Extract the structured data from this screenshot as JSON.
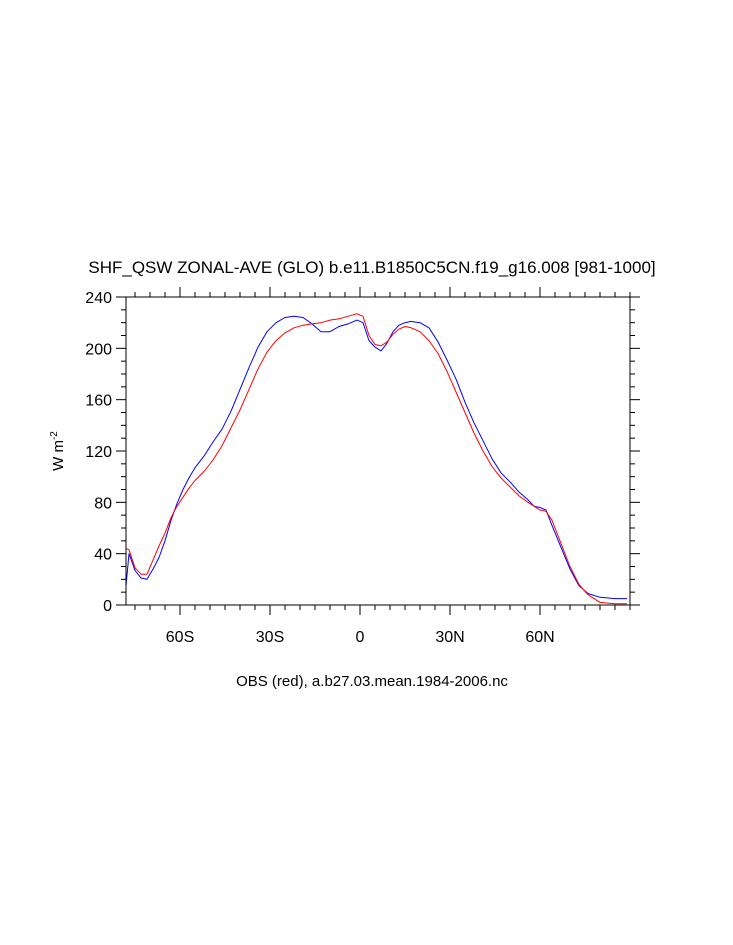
{
  "chart_data": {
    "type": "line",
    "title": "SHF_QSW ZONAL-AVE (GLO) b.e11.B1850C5CN.f19_g16.008 [981-1000]",
    "ylabel": "W m",
    "ylabel_exp": "-2",
    "footnote": "OBS (red), a.b27.03.mean.1984-2006.nc",
    "xlim": [
      -78,
      90
    ],
    "ylim": [
      0,
      240
    ],
    "x_ticks": [
      {
        "value": -60,
        "label": "60S"
      },
      {
        "value": -30,
        "label": "30S"
      },
      {
        "value": 0,
        "label": "0"
      },
      {
        "value": 30,
        "label": "30N"
      },
      {
        "value": 60,
        "label": "60N"
      }
    ],
    "y_ticks": [
      {
        "value": 0,
        "label": "0"
      },
      {
        "value": 40,
        "label": "40"
      },
      {
        "value": 80,
        "label": "80"
      },
      {
        "value": 120,
        "label": "120"
      },
      {
        "value": 160,
        "label": "160"
      },
      {
        "value": 200,
        "label": "200"
      },
      {
        "value": 240,
        "label": "240"
      }
    ],
    "series": [
      {
        "color": "#0000ff",
        "points": [
          [
            -78,
            15
          ],
          [
            -77,
            40
          ],
          [
            -75,
            27
          ],
          [
            -73,
            21
          ],
          [
            -71,
            20
          ],
          [
            -69,
            28
          ],
          [
            -67,
            37
          ],
          [
            -65,
            50
          ],
          [
            -63,
            66
          ],
          [
            -61,
            79
          ],
          [
            -59,
            90
          ],
          [
            -57,
            99
          ],
          [
            -55,
            107
          ],
          [
            -52,
            116
          ],
          [
            -49,
            127
          ],
          [
            -46,
            137
          ],
          [
            -43,
            151
          ],
          [
            -40,
            168
          ],
          [
            -37,
            185
          ],
          [
            -34,
            201
          ],
          [
            -31,
            213
          ],
          [
            -28,
            220
          ],
          [
            -25,
            224
          ],
          [
            -22,
            225
          ],
          [
            -19,
            224
          ],
          [
            -16,
            219
          ],
          [
            -13,
            213
          ],
          [
            -10,
            213
          ],
          [
            -7,
            217
          ],
          [
            -4,
            219
          ],
          [
            -1,
            222
          ],
          [
            1,
            220
          ],
          [
            3,
            206
          ],
          [
            5,
            201
          ],
          [
            7,
            198
          ],
          [
            9,
            204
          ],
          [
            11,
            213
          ],
          [
            13,
            218
          ],
          [
            15,
            220
          ],
          [
            17,
            221
          ],
          [
            20,
            220
          ],
          [
            23,
            216
          ],
          [
            26,
            205
          ],
          [
            29,
            191
          ],
          [
            32,
            176
          ],
          [
            35,
            158
          ],
          [
            38,
            142
          ],
          [
            41,
            128
          ],
          [
            44,
            114
          ],
          [
            47,
            103
          ],
          [
            50,
            96
          ],
          [
            53,
            88
          ],
          [
            56,
            82
          ],
          [
            58,
            77
          ],
          [
            60,
            76
          ],
          [
            62,
            74
          ],
          [
            64,
            62
          ],
          [
            67,
            45
          ],
          [
            70,
            28
          ],
          [
            73,
            15
          ],
          [
            76,
            9
          ],
          [
            80,
            6
          ],
          [
            85,
            5
          ],
          [
            89,
            5
          ]
        ]
      },
      {
        "color": "#ff0000",
        "points": [
          [
            -78,
            44
          ],
          [
            -77,
            43
          ],
          [
            -75,
            29
          ],
          [
            -73,
            24
          ],
          [
            -71,
            24
          ],
          [
            -69,
            35
          ],
          [
            -67,
            46
          ],
          [
            -65,
            56
          ],
          [
            -63,
            68
          ],
          [
            -61,
            77
          ],
          [
            -59,
            84
          ],
          [
            -57,
            91
          ],
          [
            -55,
            97
          ],
          [
            -52,
            104
          ],
          [
            -49,
            113
          ],
          [
            -46,
            124
          ],
          [
            -43,
            138
          ],
          [
            -40,
            152
          ],
          [
            -37,
            168
          ],
          [
            -34,
            184
          ],
          [
            -31,
            197
          ],
          [
            -28,
            206
          ],
          [
            -25,
            212
          ],
          [
            -22,
            216
          ],
          [
            -19,
            218
          ],
          [
            -16,
            219
          ],
          [
            -13,
            220
          ],
          [
            -10,
            222
          ],
          [
            -7,
            223
          ],
          [
            -4,
            225
          ],
          [
            -1,
            227
          ],
          [
            1,
            225
          ],
          [
            3,
            210
          ],
          [
            5,
            203
          ],
          [
            7,
            202
          ],
          [
            9,
            205
          ],
          [
            11,
            211
          ],
          [
            13,
            215
          ],
          [
            15,
            217
          ],
          [
            17,
            216
          ],
          [
            20,
            213
          ],
          [
            23,
            206
          ],
          [
            26,
            196
          ],
          [
            29,
            182
          ],
          [
            32,
            166
          ],
          [
            35,
            150
          ],
          [
            38,
            134
          ],
          [
            41,
            120
          ],
          [
            44,
            108
          ],
          [
            47,
            99
          ],
          [
            50,
            92
          ],
          [
            53,
            85
          ],
          [
            56,
            80
          ],
          [
            58,
            77
          ],
          [
            60,
            74
          ],
          [
            62,
            73
          ],
          [
            64,
            66
          ],
          [
            67,
            48
          ],
          [
            70,
            30
          ],
          [
            73,
            16
          ],
          [
            76,
            8
          ],
          [
            80,
            2
          ],
          [
            85,
            1
          ],
          [
            89,
            1
          ]
        ]
      }
    ]
  }
}
